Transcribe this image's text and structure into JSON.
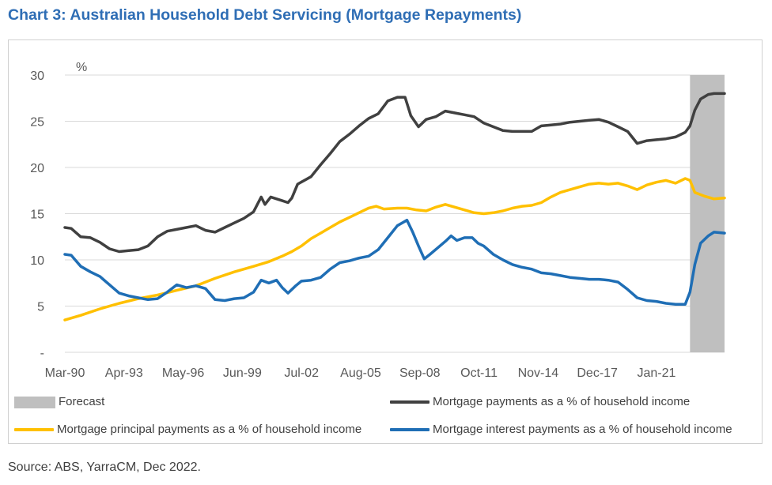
{
  "title": "Chart 3: Australian Household Debt Servicing (Mortgage Repayments)",
  "source": "Source: ABS, YarraCM, Dec 2022.",
  "chart_data": {
    "type": "line",
    "title": "Chart 3: Australian Household Debt Servicing (Mortgage Repayments)",
    "ylabel": "%",
    "ylim": [
      0,
      30
    ],
    "y_ticks": [
      "-",
      "5",
      "10",
      "15",
      "20",
      "25",
      "30"
    ],
    "x_ticks": [
      "Mar-90",
      "Apr-93",
      "May-96",
      "Jun-99",
      "Jul-02",
      "Aug-05",
      "Sep-08",
      "Oct-11",
      "Nov-14",
      "Dec-17",
      "Jan-21"
    ],
    "xlim": [
      1990.17,
      2024.55
    ],
    "grid": true,
    "legend_position": "bottom",
    "forecast": {
      "label": "Forecast",
      "start": 2022.75,
      "end": 2024.55,
      "color": "#bfbfbf"
    },
    "series": [
      {
        "name": "Mortgage payments as a % of household income",
        "color": "#404040",
        "points": [
          [
            1990.17,
            13.5
          ],
          [
            1990.5,
            13.4
          ],
          [
            1991,
            12.5
          ],
          [
            1991.5,
            12.4
          ],
          [
            1992,
            11.9
          ],
          [
            1992.5,
            11.2
          ],
          [
            1993,
            10.9
          ],
          [
            1993.5,
            11.0
          ],
          [
            1994,
            11.1
          ],
          [
            1994.5,
            11.5
          ],
          [
            1995,
            12.5
          ],
          [
            1995.5,
            13.1
          ],
          [
            1996,
            13.3
          ],
          [
            1996.5,
            13.5
          ],
          [
            1997,
            13.7
          ],
          [
            1997.5,
            13.2
          ],
          [
            1998,
            13.0
          ],
          [
            1998.5,
            13.5
          ],
          [
            1999,
            14.0
          ],
          [
            1999.5,
            14.5
          ],
          [
            2000,
            15.2
          ],
          [
            2000.4,
            16.8
          ],
          [
            2000.6,
            16.0
          ],
          [
            2000.9,
            16.8
          ],
          [
            2001.5,
            16.4
          ],
          [
            2001.8,
            16.2
          ],
          [
            2002,
            16.7
          ],
          [
            2002.3,
            18.2
          ],
          [
            2003,
            19.0
          ],
          [
            2003.5,
            20.3
          ],
          [
            2004,
            21.5
          ],
          [
            2004.5,
            22.8
          ],
          [
            2005,
            23.6
          ],
          [
            2005.5,
            24.5
          ],
          [
            2006,
            25.3
          ],
          [
            2006.5,
            25.8
          ],
          [
            2007,
            27.2
          ],
          [
            2007.5,
            27.6
          ],
          [
            2007.9,
            27.6
          ],
          [
            2008.2,
            25.6
          ],
          [
            2008.6,
            24.4
          ],
          [
            2009,
            25.2
          ],
          [
            2009.5,
            25.5
          ],
          [
            2010,
            26.1
          ],
          [
            2010.5,
            25.9
          ],
          [
            2011,
            25.7
          ],
          [
            2011.5,
            25.5
          ],
          [
            2012,
            24.8
          ],
          [
            2012.5,
            24.4
          ],
          [
            2013,
            24.0
          ],
          [
            2013.5,
            23.9
          ],
          [
            2014,
            23.9
          ],
          [
            2014.5,
            23.9
          ],
          [
            2015,
            24.5
          ],
          [
            2015.5,
            24.6
          ],
          [
            2016,
            24.7
          ],
          [
            2016.5,
            24.9
          ],
          [
            2017,
            25.0
          ],
          [
            2017.5,
            25.1
          ],
          [
            2018,
            25.2
          ],
          [
            2018.5,
            24.9
          ],
          [
            2019,
            24.4
          ],
          [
            2019.5,
            23.9
          ],
          [
            2020,
            22.6
          ],
          [
            2020.5,
            22.9
          ],
          [
            2021,
            23.0
          ],
          [
            2021.5,
            23.1
          ],
          [
            2022,
            23.3
          ],
          [
            2022.5,
            23.8
          ],
          [
            2022.75,
            24.5
          ],
          [
            2023,
            26.2
          ],
          [
            2023.3,
            27.4
          ],
          [
            2023.7,
            27.9
          ],
          [
            2024,
            28.0
          ],
          [
            2024.55,
            28.0
          ]
        ]
      },
      {
        "name": "Mortgage principal payments as a % of household income",
        "color": "#ffc000",
        "points": [
          [
            1990.17,
            3.5
          ],
          [
            1991,
            4.0
          ],
          [
            1992,
            4.7
          ],
          [
            1993,
            5.3
          ],
          [
            1994,
            5.8
          ],
          [
            1995,
            6.2
          ],
          [
            1996,
            6.7
          ],
          [
            1997,
            7.2
          ],
          [
            1998,
            8.0
          ],
          [
            1999,
            8.7
          ],
          [
            2000,
            9.3
          ],
          [
            2000.8,
            9.8
          ],
          [
            2001.5,
            10.4
          ],
          [
            2002,
            10.9
          ],
          [
            2002.5,
            11.5
          ],
          [
            2003,
            12.3
          ],
          [
            2003.5,
            12.9
          ],
          [
            2004,
            13.5
          ],
          [
            2004.5,
            14.1
          ],
          [
            2005,
            14.6
          ],
          [
            2005.5,
            15.1
          ],
          [
            2006,
            15.6
          ],
          [
            2006.4,
            15.8
          ],
          [
            2006.8,
            15.5
          ],
          [
            2007.5,
            15.6
          ],
          [
            2008,
            15.6
          ],
          [
            2008.5,
            15.4
          ],
          [
            2009,
            15.3
          ],
          [
            2009.5,
            15.7
          ],
          [
            2010,
            16.0
          ],
          [
            2010.5,
            15.7
          ],
          [
            2011,
            15.4
          ],
          [
            2011.5,
            15.1
          ],
          [
            2012,
            15.0
          ],
          [
            2012.5,
            15.1
          ],
          [
            2013,
            15.3
          ],
          [
            2013.5,
            15.6
          ],
          [
            2014,
            15.8
          ],
          [
            2014.5,
            15.9
          ],
          [
            2015,
            16.2
          ],
          [
            2015.5,
            16.8
          ],
          [
            2016,
            17.3
          ],
          [
            2016.5,
            17.6
          ],
          [
            2017,
            17.9
          ],
          [
            2017.5,
            18.2
          ],
          [
            2018,
            18.3
          ],
          [
            2018.5,
            18.2
          ],
          [
            2019,
            18.3
          ],
          [
            2019.5,
            18.0
          ],
          [
            2020,
            17.6
          ],
          [
            2020.5,
            18.1
          ],
          [
            2021,
            18.4
          ],
          [
            2021.5,
            18.6
          ],
          [
            2022,
            18.3
          ],
          [
            2022.5,
            18.8
          ],
          [
            2022.75,
            18.6
          ],
          [
            2023,
            17.3
          ],
          [
            2023.5,
            16.9
          ],
          [
            2024,
            16.6
          ],
          [
            2024.55,
            16.7
          ]
        ]
      },
      {
        "name": "Mortgage interest payments as a % of household income",
        "color": "#1f6eb5",
        "points": [
          [
            1990.17,
            10.6
          ],
          [
            1990.5,
            10.5
          ],
          [
            1991,
            9.3
          ],
          [
            1991.5,
            8.7
          ],
          [
            1992,
            8.2
          ],
          [
            1992.5,
            7.3
          ],
          [
            1993,
            6.4
          ],
          [
            1993.5,
            6.1
          ],
          [
            1994,
            5.9
          ],
          [
            1994.5,
            5.7
          ],
          [
            1995,
            5.8
          ],
          [
            1995.5,
            6.5
          ],
          [
            1996,
            7.3
          ],
          [
            1996.5,
            7.0
          ],
          [
            1997,
            7.2
          ],
          [
            1997.5,
            6.9
          ],
          [
            1998,
            5.7
          ],
          [
            1998.5,
            5.6
          ],
          [
            1999,
            5.8
          ],
          [
            1999.5,
            5.9
          ],
          [
            2000,
            6.5
          ],
          [
            2000.4,
            7.8
          ],
          [
            2000.8,
            7.5
          ],
          [
            2001.2,
            7.8
          ],
          [
            2001.5,
            7.0
          ],
          [
            2001.8,
            6.4
          ],
          [
            2002.2,
            7.2
          ],
          [
            2002.5,
            7.7
          ],
          [
            2003,
            7.8
          ],
          [
            2003.5,
            8.1
          ],
          [
            2004,
            9.0
          ],
          [
            2004.5,
            9.7
          ],
          [
            2005,
            9.9
          ],
          [
            2005.5,
            10.2
          ],
          [
            2006,
            10.4
          ],
          [
            2006.5,
            11.1
          ],
          [
            2007,
            12.4
          ],
          [
            2007.5,
            13.7
          ],
          [
            2008,
            14.3
          ],
          [
            2008.3,
            13.0
          ],
          [
            2008.6,
            11.5
          ],
          [
            2008.9,
            10.1
          ],
          [
            2009.2,
            10.6
          ],
          [
            2009.6,
            11.3
          ],
          [
            2010,
            12.0
          ],
          [
            2010.3,
            12.6
          ],
          [
            2010.6,
            12.1
          ],
          [
            2011,
            12.4
          ],
          [
            2011.4,
            12.4
          ],
          [
            2011.7,
            11.8
          ],
          [
            2012,
            11.5
          ],
          [
            2012.5,
            10.6
          ],
          [
            2013,
            10.0
          ],
          [
            2013.5,
            9.5
          ],
          [
            2014,
            9.2
          ],
          [
            2014.5,
            9.0
          ],
          [
            2015,
            8.6
          ],
          [
            2015.5,
            8.5
          ],
          [
            2016,
            8.3
          ],
          [
            2016.5,
            8.1
          ],
          [
            2017,
            8.0
          ],
          [
            2017.5,
            7.9
          ],
          [
            2018,
            7.9
          ],
          [
            2018.5,
            7.8
          ],
          [
            2019,
            7.6
          ],
          [
            2019.5,
            6.8
          ],
          [
            2020,
            5.9
          ],
          [
            2020.5,
            5.6
          ],
          [
            2021,
            5.5
          ],
          [
            2021.5,
            5.3
          ],
          [
            2022,
            5.2
          ],
          [
            2022.5,
            5.2
          ],
          [
            2022.75,
            6.5
          ],
          [
            2023,
            9.5
          ],
          [
            2023.3,
            11.8
          ],
          [
            2023.7,
            12.6
          ],
          [
            2024,
            13.0
          ],
          [
            2024.55,
            12.9
          ]
        ]
      }
    ]
  },
  "legend": {
    "forecast": "Forecast",
    "total": "Mortgage payments as a % of household income",
    "principal": "Mortgage principal payments as a % of household income",
    "interest": "Mortgage interest payments as a % of household income"
  }
}
